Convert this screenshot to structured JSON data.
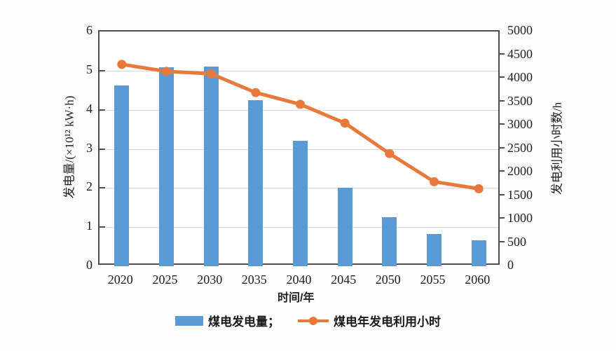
{
  "chart_data": {
    "type": "bar+line combo",
    "categories": [
      "2020",
      "2025",
      "2030",
      "2035",
      "2040",
      "2045",
      "2050",
      "2055",
      "2060"
    ],
    "series": [
      {
        "name": "煤电发电量",
        "type": "bar",
        "axis": "left",
        "values": [
          4.63,
          5.08,
          5.1,
          4.25,
          3.2,
          2.0,
          1.25,
          0.82,
          0.66
        ]
      },
      {
        "name": "煤电年发电利用小时",
        "type": "line",
        "axis": "right",
        "values": [
          4300,
          4150,
          4100,
          3700,
          3450,
          3050,
          2400,
          1800,
          1650
        ]
      }
    ],
    "left_axis": {
      "label": "发电量/(×10¹² kW·h)",
      "min": 0,
      "max": 6,
      "ticks": [
        0,
        1,
        2,
        3,
        4,
        5,
        6
      ],
      "gridline_values": [
        1,
        2,
        3,
        4,
        5
      ]
    },
    "right_axis": {
      "label": "发电利用小时数/h",
      "min": 0,
      "max": 5000,
      "ticks": [
        0,
        500,
        1000,
        1500,
        2000,
        2500,
        3000,
        3500,
        4000,
        4500,
        5000
      ],
      "tick_mark_values": [
        500,
        1000,
        1500,
        2000,
        2500,
        3000,
        3500,
        4000,
        4500
      ]
    },
    "x_axis": {
      "label": "时间/年"
    },
    "legend": {
      "bar_label": "煤电发电量；",
      "line_label": "煤电年发电利用小时",
      "position": "bottom-center"
    },
    "grid": "horizontal only",
    "colors": {
      "bar": "#5b9bd5",
      "line": "#e8793a",
      "gridline": "#d9d9d9",
      "frame": "#4f4f4f",
      "text": "#1f1f1f"
    }
  }
}
